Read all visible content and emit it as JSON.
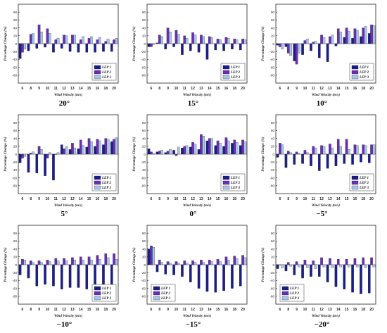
{
  "chart_data": [
    {
      "type": "bar",
      "title": "20°",
      "xlabel": "Wind Velocity (m/s)",
      "ylabel": "Percentage Change (%)",
      "categories": [
        "6",
        "8",
        "9",
        "10",
        "11",
        "12",
        "13",
        "14",
        "15",
        "16",
        "18",
        "20"
      ],
      "ylim": [
        -100,
        100
      ],
      "yticks": [
        -80,
        -60,
        -40,
        -20,
        0,
        20,
        40,
        60,
        80
      ],
      "legend": "bottom-right",
      "series": [
        {
          "name": "LEP 1",
          "values": [
            -38,
            -18,
            -12,
            -9,
            -22,
            -12,
            -20,
            -22,
            -22,
            -22,
            -20,
            -20
          ]
        },
        {
          "name": "LEP 2",
          "values": [
            -22,
            24,
            48,
            38,
            10,
            22,
            22,
            10,
            14,
            10,
            6,
            10
          ]
        },
        {
          "name": "LEP 3",
          "values": [
            -14,
            26,
            30,
            26,
            14,
            20,
            22,
            18,
            18,
            16,
            12,
            14
          ]
        }
      ]
    },
    {
      "type": "bar",
      "title": "15°",
      "xlabel": "Wind Velocity (m/s)",
      "ylabel": "Percentage Change (%)",
      "categories": [
        "6",
        "8",
        "9",
        "10",
        "11",
        "12",
        "13",
        "14",
        "15",
        "16",
        "18",
        "20"
      ],
      "ylim": [
        -100,
        100
      ],
      "yticks": [
        -80,
        -60,
        -40,
        -20,
        0,
        20,
        40,
        60,
        80
      ],
      "legend": "bottom-right",
      "series": [
        {
          "name": "LEP 1",
          "values": [
            -8,
            2,
            -14,
            -8,
            -28,
            -18,
            -22,
            -40,
            -16,
            -18,
            -14,
            -16
          ]
        },
        {
          "name": "LEP 2",
          "values": [
            -8,
            22,
            40,
            34,
            20,
            28,
            22,
            18,
            12,
            16,
            12,
            12
          ]
        },
        {
          "name": "LEP 3",
          "values": [
            -2,
            18,
            30,
            24,
            14,
            22,
            18,
            16,
            10,
            14,
            10,
            10
          ]
        }
      ]
    },
    {
      "type": "bar",
      "title": "10°",
      "xlabel": "Wind Velocity (m/s)",
      "ylabel": "Percentage Change (%)",
      "categories": [
        "6",
        "8",
        "9",
        "10",
        "11",
        "12",
        "13",
        "14",
        "15",
        "16",
        "18",
        "20"
      ],
      "ylim": [
        -100,
        100
      ],
      "yticks": [
        -80,
        -60,
        -40,
        -20,
        0,
        20,
        40,
        60,
        80
      ],
      "legend": "bottom-right",
      "series": [
        {
          "name": "LEP 1",
          "values": [
            -4,
            -8,
            -44,
            -28,
            -18,
            -36,
            -46,
            -6,
            16,
            14,
            18,
            26
          ]
        },
        {
          "name": "LEP 2",
          "values": [
            -8,
            -24,
            -52,
            8,
            4,
            22,
            18,
            38,
            40,
            38,
            40,
            48
          ]
        },
        {
          "name": "LEP 3",
          "values": [
            -14,
            -30,
            -24,
            12,
            6,
            16,
            22,
            30,
            32,
            34,
            44,
            46
          ]
        }
      ]
    },
    {
      "type": "bar",
      "title": "5°",
      "xlabel": "Wind Velocity (m/s)",
      "ylabel": "Percentage Change (%)",
      "categories": [
        "6",
        "8",
        "9",
        "10",
        "11",
        "12",
        "13",
        "14",
        "15",
        "16",
        "18",
        "20"
      ],
      "ylim": [
        -100,
        100
      ],
      "yticks": [
        -80,
        -60,
        -40,
        -20,
        0,
        20,
        40,
        60,
        80
      ],
      "legend": "bottom-right",
      "series": [
        {
          "name": "LEP 1",
          "values": [
            -22,
            -46,
            -48,
            -55,
            -66,
            24,
            12,
            14,
            18,
            20,
            24,
            32
          ]
        },
        {
          "name": "LEP 2",
          "values": [
            -10,
            3,
            20,
            -10,
            0,
            14,
            28,
            36,
            40,
            38,
            40,
            38
          ]
        },
        {
          "name": "LEP 3",
          "values": [
            -6,
            6,
            12,
            4,
            4,
            20,
            16,
            22,
            32,
            34,
            38,
            42
          ]
        }
      ]
    },
    {
      "type": "bar",
      "title": "0°",
      "xlabel": "Wind Velocity (m/s)",
      "ylabel": "Percentage Change (%)",
      "categories": [
        "6",
        "8",
        "9",
        "10",
        "11",
        "12",
        "13",
        "14",
        "15",
        "16",
        "18",
        "20"
      ],
      "ylim": [
        -100,
        100
      ],
      "yticks": [
        -80,
        -60,
        -40,
        -20,
        0,
        20,
        40,
        60,
        80
      ],
      "legend": "bottom-right",
      "series": [
        {
          "name": "LEP 1",
          "values": [
            14,
            6,
            4,
            10,
            16,
            18,
            12,
            34,
            22,
            20,
            28,
            22
          ]
        },
        {
          "name": "LEP 2",
          "values": [
            6,
            8,
            8,
            -4,
            20,
            30,
            50,
            40,
            34,
            42,
            36,
            36
          ]
        },
        {
          "name": "LEP 3",
          "values": [
            2,
            10,
            12,
            18,
            22,
            26,
            46,
            40,
            28,
            34,
            30,
            32
          ]
        }
      ]
    },
    {
      "type": "bar",
      "title": "−5°",
      "xlabel": "Wind Velocity (m/s)",
      "ylabel": "Percentage Change (%)",
      "categories": [
        "6",
        "8",
        "9",
        "10",
        "11",
        "12",
        "13",
        "14",
        "15",
        "16",
        "18",
        "20"
      ],
      "ylim": [
        -100,
        100
      ],
      "yticks": [
        -80,
        -60,
        -40,
        -20,
        0,
        20,
        40,
        60,
        80
      ],
      "legend": "bottom-right",
      "series": [
        {
          "name": "LEP 1",
          "values": [
            -8,
            -34,
            -26,
            -24,
            -30,
            -42,
            -36,
            -30,
            -24,
            -26,
            -20,
            -22
          ]
        },
        {
          "name": "LEP 2",
          "values": [
            28,
            8,
            6,
            10,
            20,
            22,
            26,
            38,
            38,
            24,
            24,
            24
          ]
        },
        {
          "name": "LEP 3",
          "values": [
            24,
            4,
            2,
            4,
            16,
            20,
            16,
            20,
            12,
            22,
            22,
            24
          ]
        }
      ]
    },
    {
      "type": "bar",
      "title": "−10°",
      "xlabel": "Wind Velocity (m/s)",
      "ylabel": "Percentage Change (%)",
      "categories": [
        "6",
        "8",
        "9",
        "10",
        "11",
        "12",
        "13",
        "14",
        "15",
        "16",
        "18",
        "20"
      ],
      "ylim": [
        -100,
        100
      ],
      "yticks": [
        -80,
        -60,
        -40,
        -20,
        0,
        20,
        40,
        60,
        80
      ],
      "legend": "bottom-right",
      "series": [
        {
          "name": "LEP 1",
          "values": [
            -26,
            -34,
            -54,
            -50,
            -54,
            -62,
            -58,
            -58,
            -62,
            -62,
            -58,
            -56
          ]
        },
        {
          "name": "LEP 2",
          "values": [
            14,
            10,
            10,
            12,
            16,
            16,
            18,
            20,
            20,
            24,
            28,
            28
          ]
        },
        {
          "name": "LEP 3",
          "values": [
            12,
            6,
            6,
            8,
            10,
            10,
            12,
            12,
            12,
            14,
            18,
            14
          ]
        }
      ]
    },
    {
      "type": "bar",
      "title": "−15°",
      "xlabel": "Wind Velocity (m/s)",
      "ylabel": "Percentage Change (%)",
      "categories": [
        "6",
        "8",
        "9",
        "10",
        "11",
        "12",
        "13",
        "14",
        "15",
        "16",
        "18",
        "20"
      ],
      "ylim": [
        -100,
        100
      ],
      "yticks": [
        -80,
        -60,
        -40,
        -20,
        0,
        20,
        40,
        60,
        80
      ],
      "legend": "bottom-left",
      "series": [
        {
          "name": "LEP 1",
          "values": [
            40,
            -18,
            -24,
            -26,
            -30,
            -44,
            -60,
            -68,
            -70,
            -66,
            -60,
            -54
          ]
        },
        {
          "name": "LEP 2",
          "values": [
            48,
            12,
            8,
            8,
            10,
            10,
            12,
            12,
            14,
            20,
            22,
            24
          ]
        },
        {
          "name": "LEP 3",
          "values": [
            44,
            6,
            4,
            4,
            4,
            6,
            6,
            8,
            8,
            12,
            16,
            18
          ]
        }
      ]
    },
    {
      "type": "bar",
      "title": "−20°",
      "xlabel": "Wind Velocity (m/s)",
      "ylabel": "Percentage Change (%)",
      "categories": [
        "6",
        "8",
        "9",
        "10",
        "11",
        "12",
        "13",
        "14",
        "15",
        "16",
        "18",
        "20"
      ],
      "ylim": [
        -100,
        100
      ],
      "yticks": [
        -80,
        -60,
        -40,
        -20,
        0,
        20,
        40,
        60,
        80
      ],
      "legend": "bottom-left",
      "series": [
        {
          "name": "LEP 1",
          "values": [
            -10,
            -16,
            -26,
            -34,
            -30,
            -30,
            -44,
            -56,
            -62,
            -70,
            -74,
            -72
          ]
        },
        {
          "name": "LEP 2",
          "values": [
            0,
            6,
            8,
            12,
            10,
            18,
            16,
            14,
            14,
            16,
            18,
            18
          ]
        },
        {
          "name": "LEP 3",
          "values": [
            -8,
            -4,
            -6,
            -8,
            -10,
            -6,
            -8,
            -6,
            -6,
            -6,
            -8,
            -6
          ]
        }
      ]
    }
  ],
  "colors": [
    "#1a1e8c",
    "#6a2fb4",
    "#a9c6ea"
  ]
}
